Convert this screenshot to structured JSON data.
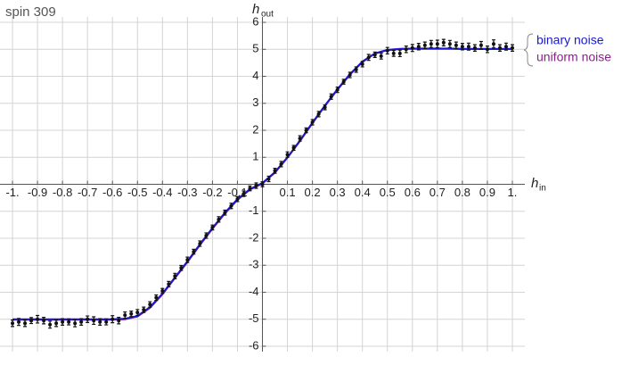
{
  "chart_data": {
    "type": "line",
    "annotation": "spin 309",
    "x_label": {
      "base": "h",
      "sub": "in"
    },
    "y_label": {
      "base": "h",
      "sub": "out"
    },
    "xlim": [
      -1.05,
      1.05
    ],
    "ylim": [
      -6.2,
      6.2
    ],
    "xticks": [
      {
        "value": -1,
        "label": "-1."
      },
      -0.9,
      -0.8,
      -0.7,
      -0.6,
      -0.5,
      -0.4,
      -0.3,
      -0.2,
      -0.1,
      0.1,
      0.2,
      0.3,
      0.4,
      0.5,
      0.6,
      0.7,
      0.8,
      0.9,
      {
        "value": 1,
        "label": "1."
      }
    ],
    "yticks": [
      -6,
      -5,
      -4,
      -3,
      -2,
      -1,
      1,
      2,
      3,
      4,
      5,
      6
    ],
    "grid": true,
    "series": [
      {
        "name": "uniform noise",
        "color": "#8a1f8a",
        "x": [
          -1,
          -0.95,
          -0.9,
          -0.85,
          -0.8,
          -0.75,
          -0.7,
          -0.65,
          -0.6,
          -0.55,
          -0.5,
          -0.45,
          -0.4,
          -0.35,
          -0.3,
          -0.25,
          -0.2,
          -0.15,
          -0.1,
          -0.05,
          0,
          0.05,
          0.1,
          0.15,
          0.2,
          0.25,
          0.3,
          0.35,
          0.4,
          0.45,
          0.5,
          0.55,
          0.6,
          0.65,
          0.7,
          0.75,
          0.8,
          0.85,
          0.9,
          0.95,
          1
        ],
        "values": [
          -5.02,
          -5.02,
          -5.02,
          -5.02,
          -5.02,
          -5.02,
          -5.02,
          -5.02,
          -5.02,
          -5.0,
          -4.9,
          -4.58,
          -4.08,
          -3.48,
          -2.88,
          -2.25,
          -1.65,
          -1.08,
          -0.58,
          -0.2,
          0.03,
          0.43,
          0.98,
          1.6,
          2.26,
          2.9,
          3.5,
          4.06,
          4.53,
          4.84,
          4.97,
          5.01,
          5.02,
          5.02,
          5.02,
          5.02,
          5.01,
          5.01,
          5.01,
          5.01,
          5.01
        ]
      },
      {
        "name": "binary noise",
        "color": "#1a1acc",
        "x": [
          -1,
          -0.95,
          -0.9,
          -0.85,
          -0.8,
          -0.75,
          -0.7,
          -0.65,
          -0.6,
          -0.55,
          -0.5,
          -0.45,
          -0.4,
          -0.35,
          -0.3,
          -0.25,
          -0.2,
          -0.15,
          -0.1,
          -0.05,
          0,
          0.05,
          0.1,
          0.15,
          0.2,
          0.25,
          0.3,
          0.35,
          0.4,
          0.45,
          0.5,
          0.55,
          0.6,
          0.65,
          0.7,
          0.75,
          0.8,
          0.85,
          0.9,
          0.95,
          1
        ],
        "values": [
          -5.0,
          -5.0,
          -5.0,
          -5.0,
          -5.0,
          -5.0,
          -5.0,
          -5.0,
          -5.0,
          -4.98,
          -4.88,
          -4.55,
          -4.05,
          -3.45,
          -2.85,
          -2.22,
          -1.62,
          -1.05,
          -0.55,
          -0.18,
          0.05,
          0.45,
          1.0,
          1.62,
          2.28,
          2.92,
          3.52,
          4.08,
          4.55,
          4.85,
          4.98,
          5.02,
          5.03,
          5.03,
          5.03,
          5.03,
          5.02,
          5.02,
          5.02,
          5.02,
          5.02
        ]
      }
    ],
    "points": {
      "color": "#111111",
      "x": [
        -1,
        -0.975,
        -0.95,
        -0.925,
        -0.9,
        -0.875,
        -0.85,
        -0.825,
        -0.8,
        -0.775,
        -0.75,
        -0.725,
        -0.7,
        -0.675,
        -0.65,
        -0.625,
        -0.6,
        -0.575,
        -0.55,
        -0.525,
        -0.5,
        -0.475,
        -0.45,
        -0.425,
        -0.4,
        -0.375,
        -0.35,
        -0.325,
        -0.3,
        -0.275,
        -0.25,
        -0.225,
        -0.2,
        -0.175,
        -0.15,
        -0.125,
        -0.1,
        -0.075,
        -0.05,
        -0.025,
        0,
        0.025,
        0.05,
        0.075,
        0.1,
        0.125,
        0.15,
        0.175,
        0.2,
        0.225,
        0.25,
        0.275,
        0.3,
        0.325,
        0.35,
        0.375,
        0.4,
        0.425,
        0.45,
        0.475,
        0.5,
        0.525,
        0.55,
        0.575,
        0.6,
        0.625,
        0.65,
        0.675,
        0.7,
        0.725,
        0.75,
        0.775,
        0.8,
        0.825,
        0.85,
        0.875,
        0.9,
        0.925,
        0.95,
        0.975,
        1
      ],
      "values": [
        -5.15,
        -5.1,
        -5.15,
        -5.05,
        -5.0,
        -5.05,
        -5.2,
        -5.15,
        -5.1,
        -5.1,
        -5.15,
        -5.1,
        -5.0,
        -5.05,
        -5.1,
        -5.1,
        -5.0,
        -5.05,
        -4.85,
        -4.8,
        -4.75,
        -4.65,
        -4.45,
        -4.2,
        -3.95,
        -3.7,
        -3.4,
        -3.1,
        -2.8,
        -2.5,
        -2.2,
        -1.9,
        -1.6,
        -1.3,
        -1.05,
        -0.8,
        -0.55,
        -0.35,
        -0.15,
        -0.05,
        0.0,
        0.2,
        0.5,
        0.75,
        1.1,
        1.35,
        1.7,
        2.0,
        2.3,
        2.6,
        2.85,
        3.25,
        3.5,
        3.8,
        4.05,
        4.25,
        4.45,
        4.7,
        4.8,
        4.75,
        4.95,
        4.85,
        4.85,
        5.0,
        5.05,
        5.1,
        5.15,
        5.2,
        5.2,
        5.25,
        5.2,
        5.15,
        5.1,
        5.1,
        5.05,
        5.15,
        5.0,
        5.2,
        5.05,
        5.1,
        5.05
      ],
      "errors": [
        0.12,
        0.13,
        0.12,
        0.11,
        0.14,
        0.12,
        0.13,
        0.12,
        0.12,
        0.11,
        0.13,
        0.12,
        0.12,
        0.14,
        0.12,
        0.11,
        0.13,
        0.12,
        0.12,
        0.1,
        0.11,
        0.1,
        0.1,
        0.1,
        0.09,
        0.1,
        0.1,
        0.09,
        0.1,
        0.09,
        0.1,
        0.1,
        0.09,
        0.1,
        0.09,
        0.1,
        0.09,
        0.1,
        0.09,
        0.1,
        0.09,
        0.1,
        0.09,
        0.1,
        0.1,
        0.09,
        0.1,
        0.09,
        0.1,
        0.1,
        0.09,
        0.1,
        0.1,
        0.09,
        0.1,
        0.1,
        0.1,
        0.11,
        0.1,
        0.11,
        0.12,
        0.11,
        0.12,
        0.12,
        0.13,
        0.12,
        0.12,
        0.13,
        0.14,
        0.12,
        0.13,
        0.12,
        0.12,
        0.13,
        0.12,
        0.14,
        0.12,
        0.15,
        0.12,
        0.13,
        0.12
      ]
    }
  }
}
